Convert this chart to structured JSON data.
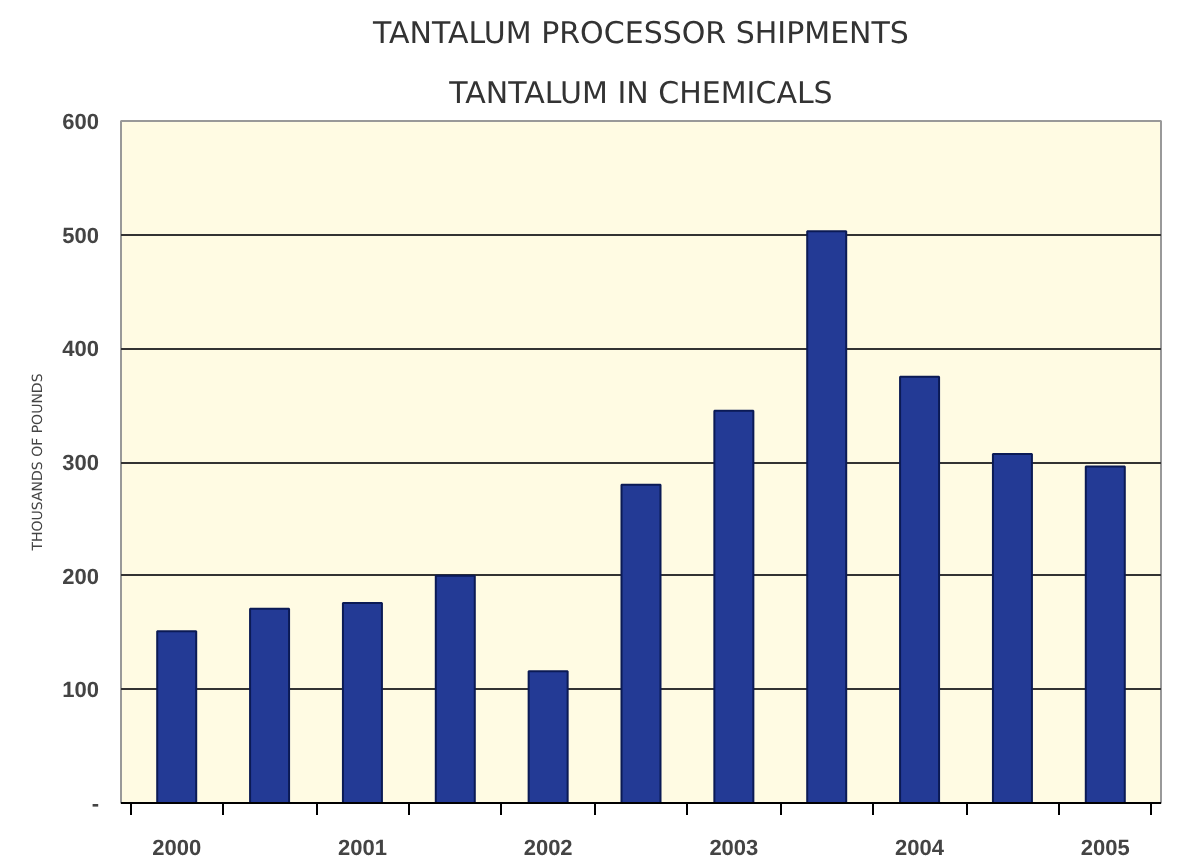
{
  "chart_data": {
    "type": "bar",
    "title": "TANTALUM PROCESSOR SHIPMENTS",
    "subtitle": "TANTALUM IN CHEMICALS",
    "ylabel": "THOUSANDS OF POUNDS",
    "categories": [
      "2000",
      null,
      "2001",
      null,
      "2002",
      null,
      "2003",
      null,
      "2004",
      null,
      "2005"
    ],
    "values": [
      151,
      171,
      176,
      200,
      116,
      280,
      345,
      503,
      375,
      307,
      296
    ],
    "color": "#233a95",
    "ylim": [
      0,
      600
    ],
    "yticks": [
      {
        "value": 0,
        "label": "-"
      },
      100,
      200,
      300,
      400,
      500,
      600
    ],
    "grid": "y"
  }
}
